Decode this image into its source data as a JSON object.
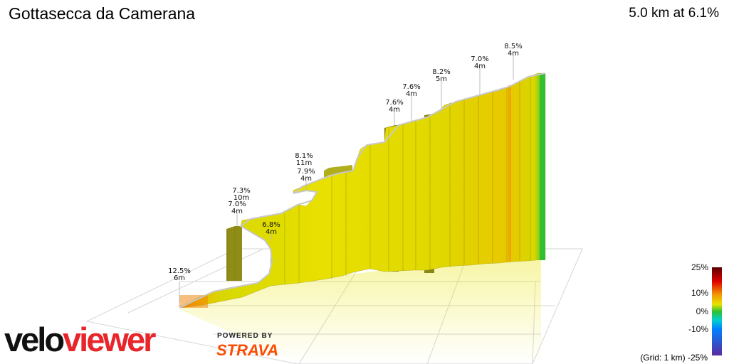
{
  "header": {
    "title": "Gottasecca da Camerana",
    "summary": "5.0 km at 6.1%"
  },
  "branding": {
    "logo_part1": "velo",
    "logo_part2": "viewer",
    "powered_by": "POWERED BY",
    "strava": "STRAVA"
  },
  "grid_note": "(Grid: 1 km) -25%",
  "colors": {
    "profile_low": "#e8e400",
    "profile_dark": "#8a8a10",
    "steep_orange": "#f08000",
    "summit_green": "#30c030",
    "logo_red": "#e8252b",
    "strava_orange": "#fc4c02"
  },
  "chart_data": {
    "type": "area",
    "title": "Gottasecca da Camerana",
    "subtitle": "5.0 km at 6.1%",
    "xlabel": "",
    "ylabel": "",
    "grid": true,
    "grid_spacing_km": 1,
    "distance_km": 5.0,
    "avg_gradient_pct": 6.1,
    "annotations": [
      {
        "id": "a1",
        "gradient": "12.5%",
        "length": "6m"
      },
      {
        "id": "a2",
        "gradient": "7.0%",
        "length": "4m"
      },
      {
        "id": "a3",
        "gradient": "7.3%",
        "length": "10m"
      },
      {
        "id": "a4",
        "gradient": "6.8%",
        "length": "4m"
      },
      {
        "id": "a5",
        "gradient": "7.9%",
        "length": "4m"
      },
      {
        "id": "a6",
        "gradient": "8.1%",
        "length": "11m"
      },
      {
        "id": "a7",
        "gradient": "7.6%",
        "length": "4m"
      },
      {
        "id": "a8",
        "gradient": "7.6%",
        "length": "4m"
      },
      {
        "id": "a9",
        "gradient": "8.2%",
        "length": "5m"
      },
      {
        "id": "a10",
        "gradient": "7.0%",
        "length": "4m"
      },
      {
        "id": "a11",
        "gradient": "8.5%",
        "length": "4m"
      }
    ],
    "color_scale": {
      "labels": [
        "25%",
        "10%",
        "0%",
        "-10%"
      ],
      "stops": [
        {
          "pct": 25,
          "color": "#5a0000"
        },
        {
          "pct": 17,
          "color": "#e00000"
        },
        {
          "pct": 10,
          "color": "#f09000"
        },
        {
          "pct": 5,
          "color": "#e8e400"
        },
        {
          "pct": 0,
          "color": "#30c030"
        },
        {
          "pct": -5,
          "color": "#00d0d0"
        },
        {
          "pct": -10,
          "color": "#0080ff"
        },
        {
          "pct": -25,
          "color": "#5a2aa0"
        }
      ]
    }
  }
}
